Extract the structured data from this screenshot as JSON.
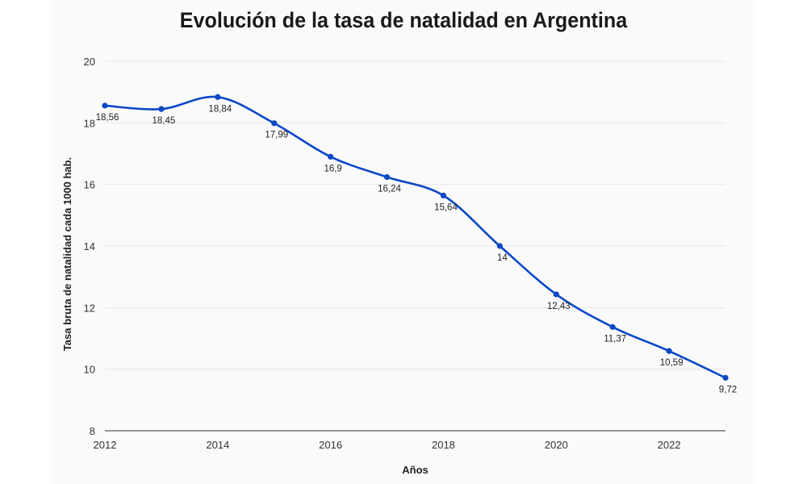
{
  "colors": {
    "line": "#0a47c7",
    "grid": "#e6e6e6",
    "background": "#fafafa"
  },
  "chart_data": {
    "type": "line",
    "title": "Evolución de la tasa de natalidad en Argentina",
    "xlabel": "Años",
    "ylabel": "Tasa bruta de natalidad cada 1000 hab.",
    "x": [
      2012,
      2013,
      2014,
      2015,
      2016,
      2017,
      2018,
      2019,
      2020,
      2021,
      2022,
      2023
    ],
    "series": [
      {
        "name": "Tasa bruta de natalidad",
        "values": [
          18.56,
          18.45,
          18.84,
          17.99,
          16.9,
          16.24,
          15.64,
          14,
          12.43,
          11.37,
          10.59,
          9.72
        ],
        "labels": [
          "18,56",
          "18,45",
          "18,84",
          "17,99",
          "16,9",
          "16,24",
          "15,64",
          "14",
          "12,43",
          "11,37",
          "10,59",
          "9,72"
        ]
      }
    ],
    "xlim": [
      2012,
      2023
    ],
    "ylim": [
      8,
      20
    ],
    "xticks": [
      2012,
      2014,
      2016,
      2018,
      2020,
      2022
    ],
    "yticks": [
      8,
      10,
      12,
      14,
      16,
      18,
      20
    ],
    "grid": true,
    "legend": "none"
  }
}
